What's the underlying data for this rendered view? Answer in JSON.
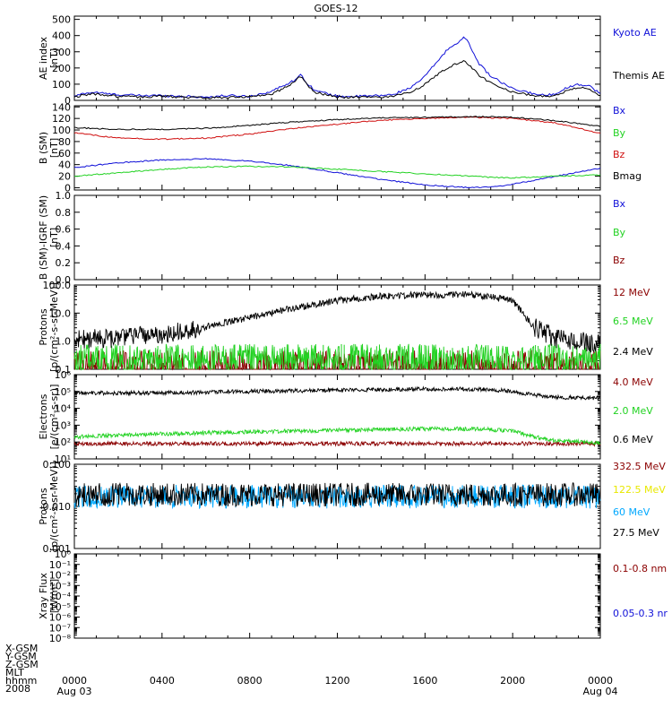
{
  "title": "GOES-12",
  "colors": {
    "black": "#000000",
    "blue": "#1010d8",
    "green": "#22d222",
    "red": "#d01010",
    "darkred": "#8b0000",
    "yellow": "#e8e800",
    "cyan": "#00a8ff"
  },
  "footer": {
    "rows": [
      "X-GSM",
      "Y-GSM",
      "Z-GSM",
      "MLT",
      "hhmm",
      "2008"
    ],
    "ticks": [
      {
        "hour": 0,
        "label": "0000",
        "sub": "Aug 03"
      },
      {
        "hour": 4,
        "label": "0400",
        "sub": ""
      },
      {
        "hour": 8,
        "label": "0800",
        "sub": ""
      },
      {
        "hour": 12,
        "label": "1200",
        "sub": ""
      },
      {
        "hour": 16,
        "label": "1600",
        "sub": ""
      },
      {
        "hour": 20,
        "label": "2000",
        "sub": ""
      },
      {
        "hour": 24,
        "label": "0000",
        "sub": "Aug 04"
      }
    ]
  },
  "chart_data": [
    {
      "type": "line",
      "ylabel": [
        "AE index",
        "[nT]"
      ],
      "ylim": [
        0,
        520
      ],
      "scale": "linear",
      "yticks": [
        {
          "v": 0,
          "l": "0"
        },
        {
          "v": 100,
          "l": "100"
        },
        {
          "v": 200,
          "l": "200"
        },
        {
          "v": 300,
          "l": "300"
        },
        {
          "v": 400,
          "l": "400"
        },
        {
          "v": 500,
          "l": "500"
        }
      ],
      "x_hours": [
        0,
        0.5,
        1,
        1.5,
        2,
        3,
        4,
        5,
        6,
        7,
        8,
        9,
        9.5,
        10,
        10.3,
        10.6,
        11,
        12,
        13,
        14,
        14.5,
        15,
        15.5,
        16,
        16.5,
        17,
        17.5,
        17.8,
        18,
        18.5,
        19,
        20,
        21,
        21.5,
        22,
        22.5,
        23,
        23.5,
        24
      ],
      "series": [
        {
          "name": "Kyoto AE",
          "color": "blue",
          "values": [
            25,
            45,
            50,
            40,
            35,
            30,
            30,
            25,
            20,
            30,
            25,
            55,
            90,
            120,
            160,
            110,
            60,
            25,
            25,
            30,
            35,
            60,
            90,
            150,
            230,
            310,
            360,
            390,
            350,
            220,
            150,
            70,
            40,
            30,
            45,
            80,
            100,
            90,
            40
          ]
        },
        {
          "name": "Themis AE",
          "color": "black",
          "values": [
            20,
            35,
            40,
            30,
            25,
            20,
            25,
            20,
            15,
            20,
            20,
            40,
            70,
            110,
            150,
            100,
            50,
            20,
            20,
            20,
            25,
            40,
            60,
            100,
            150,
            200,
            230,
            240,
            220,
            150,
            110,
            50,
            30,
            25,
            35,
            60,
            80,
            70,
            30
          ]
        }
      ]
    },
    {
      "type": "line",
      "ylabel": [
        "B (SM)",
        "[nT]"
      ],
      "ylim": [
        -4,
        142
      ],
      "scale": "linear",
      "yticks": [
        {
          "v": 0,
          "l": "0"
        },
        {
          "v": 20,
          "l": "20"
        },
        {
          "v": 40,
          "l": "40"
        },
        {
          "v": 60,
          "l": "60"
        },
        {
          "v": 80,
          "l": "80"
        },
        {
          "v": 100,
          "l": "100"
        },
        {
          "v": 120,
          "l": "120"
        },
        {
          "v": 140,
          "l": "140"
        }
      ],
      "x_hours": [
        0,
        2,
        4,
        6,
        8,
        10,
        12,
        14,
        16,
        18,
        19,
        20,
        22,
        24
      ],
      "series": [
        {
          "name": "Bx",
          "color": "blue",
          "values": [
            35,
            43,
            48,
            50,
            46,
            38,
            26,
            14,
            5,
            0,
            1,
            6,
            20,
            34
          ]
        },
        {
          "name": "By",
          "color": "green",
          "values": [
            20,
            26,
            32,
            36,
            37,
            36,
            32,
            28,
            24,
            20,
            18,
            17,
            20,
            22
          ]
        },
        {
          "name": "Bz",
          "color": "red",
          "values": [
            95,
            86,
            84,
            86,
            93,
            103,
            110,
            117,
            120,
            122,
            121,
            120,
            112,
            94
          ]
        },
        {
          "name": "Bmag",
          "color": "black",
          "values": [
            104,
            101,
            101,
            103,
            108,
            114,
            118,
            121,
            122,
            123,
            123,
            122,
            116,
            106
          ]
        }
      ]
    },
    {
      "type": "line",
      "ylabel": [
        "B (SM)-IGRF (SM)",
        "[nT]"
      ],
      "ylim": [
        0,
        1
      ],
      "scale": "linear",
      "yticks": [
        {
          "v": 0,
          "l": "0.0"
        },
        {
          "v": 0.2,
          "l": "0.2"
        },
        {
          "v": 0.4,
          "l": "0.4"
        },
        {
          "v": 0.6,
          "l": "0.6"
        },
        {
          "v": 0.8,
          "l": "0.8"
        },
        {
          "v": 1.0,
          "l": "1.0"
        }
      ],
      "series": [
        {
          "name": "Bx",
          "color": "blue",
          "values": []
        },
        {
          "name": "By",
          "color": "green",
          "values": []
        },
        {
          "name": "Bz",
          "color": "darkred",
          "values": []
        }
      ]
    },
    {
      "type": "line",
      "ylabel": [
        "Protons",
        "[p/(cm²-s-sr-MeV)]"
      ],
      "ylim": [
        0.1,
        100
      ],
      "scale": "log",
      "yticks": [
        {
          "v": 0.1,
          "l": "0.1"
        },
        {
          "v": 1,
          "l": "1.0"
        },
        {
          "v": 10,
          "l": "10.0"
        },
        {
          "v": 100,
          "l": "100.0"
        }
      ],
      "x_hours": [
        0,
        2,
        4,
        6,
        8,
        10,
        12,
        14,
        16,
        18,
        19,
        20,
        21,
        22,
        24
      ],
      "series": [
        {
          "name": "12 MeV",
          "color": "darkred",
          "values": [
            0.12,
            0.12,
            0.12,
            0.12,
            0.12,
            0.12,
            0.12,
            0.12,
            0.12,
            0.12,
            0.12,
            0.12,
            0.12,
            0.12,
            0.12
          ]
        },
        {
          "name": "6.5 MeV",
          "color": "green",
          "values": [
            0.2,
            0.2,
            0.2,
            0.2,
            0.2,
            0.2,
            0.2,
            0.2,
            0.2,
            0.2,
            0.2,
            0.2,
            0.2,
            0.2,
            0.2
          ]
        },
        {
          "name": "2.4 MeV",
          "color": "black",
          "values": [
            1.2,
            1.3,
            1.8,
            3.2,
            7,
            15,
            28,
            40,
            45,
            45,
            38,
            28,
            3,
            1.2,
            0.8
          ]
        }
      ]
    },
    {
      "type": "line",
      "ylabel": [
        "Electrons",
        "[e/(cm²-s-sr)]"
      ],
      "ylim": [
        10,
        1000000
      ],
      "scale": "log",
      "yticks": [
        {
          "v": 10,
          "l": "10¹"
        },
        {
          "v": 100,
          "l": "10²"
        },
        {
          "v": 1000,
          "l": "10³"
        },
        {
          "v": 10000,
          "l": "10⁴"
        },
        {
          "v": 100000,
          "l": "10⁵"
        },
        {
          "v": 1000000,
          "l": "10⁶"
        }
      ],
      "x_hours": [
        0,
        2,
        4,
        6,
        8,
        10,
        12,
        14,
        16,
        18,
        19,
        20,
        21,
        22,
        24
      ],
      "series": [
        {
          "name": "4.0 MeV",
          "color": "darkred",
          "values": [
            80,
            80,
            80,
            80,
            80,
            80,
            80,
            80,
            80,
            80,
            80,
            80,
            80,
            80,
            80
          ]
        },
        {
          "name": "2.0 MeV",
          "color": "green",
          "values": [
            200,
            250,
            300,
            350,
            400,
            450,
            500,
            550,
            600,
            600,
            550,
            450,
            200,
            120,
            90
          ]
        },
        {
          "name": "0.6 MeV",
          "color": "black",
          "values": [
            85000,
            80000,
            85000,
            90000,
            100000,
            110000,
            120000,
            130000,
            140000,
            140000,
            130000,
            100000,
            60000,
            45000,
            40000
          ]
        }
      ]
    },
    {
      "type": "line",
      "ylabel": [
        "Protons",
        "[p/(cm²-s-sr-MeV)]"
      ],
      "ylim": [
        0.001,
        0.1
      ],
      "scale": "log",
      "yticks": [
        {
          "v": 0.001,
          "l": "0.001"
        },
        {
          "v": 0.01,
          "l": "0.010"
        },
        {
          "v": 0.1,
          "l": "0.100"
        }
      ],
      "x_hours": [
        0,
        24
      ],
      "series": [
        {
          "name": "332.5 MeV",
          "color": "darkred",
          "values": []
        },
        {
          "name": "122.5 MeV",
          "color": "yellow",
          "values": []
        },
        {
          "name": "60 MeV",
          "color": "cyan",
          "values": [
            0.017,
            0.017
          ]
        },
        {
          "name": "27.5 MeV",
          "color": "black",
          "values": [
            0.019,
            0.019
          ]
        }
      ]
    },
    {
      "type": "line",
      "ylabel": [
        "Xray Flux",
        "[W/m²]"
      ],
      "ylim": [
        1e-08,
        1
      ],
      "scale": "log",
      "yticks": [
        {
          "v": 1e-08,
          "l": "10⁻⁸"
        },
        {
          "v": 1e-07,
          "l": "10⁻⁷"
        },
        {
          "v": 1e-06,
          "l": "10⁻⁶"
        },
        {
          "v": 1e-05,
          "l": "10⁻⁵"
        },
        {
          "v": 0.0001,
          "l": "10⁻⁴"
        },
        {
          "v": 0.001,
          "l": "10⁻³"
        },
        {
          "v": 0.01,
          "l": "10⁻²"
        },
        {
          "v": 0.1,
          "l": "10⁻¹"
        },
        {
          "v": 1,
          "l": "10⁰"
        }
      ],
      "series": [
        {
          "name": "0.1-0.8 nm",
          "color": "darkred",
          "values": []
        },
        {
          "name": "0.05-0.3 nr",
          "color": "blue",
          "values": []
        }
      ]
    }
  ]
}
